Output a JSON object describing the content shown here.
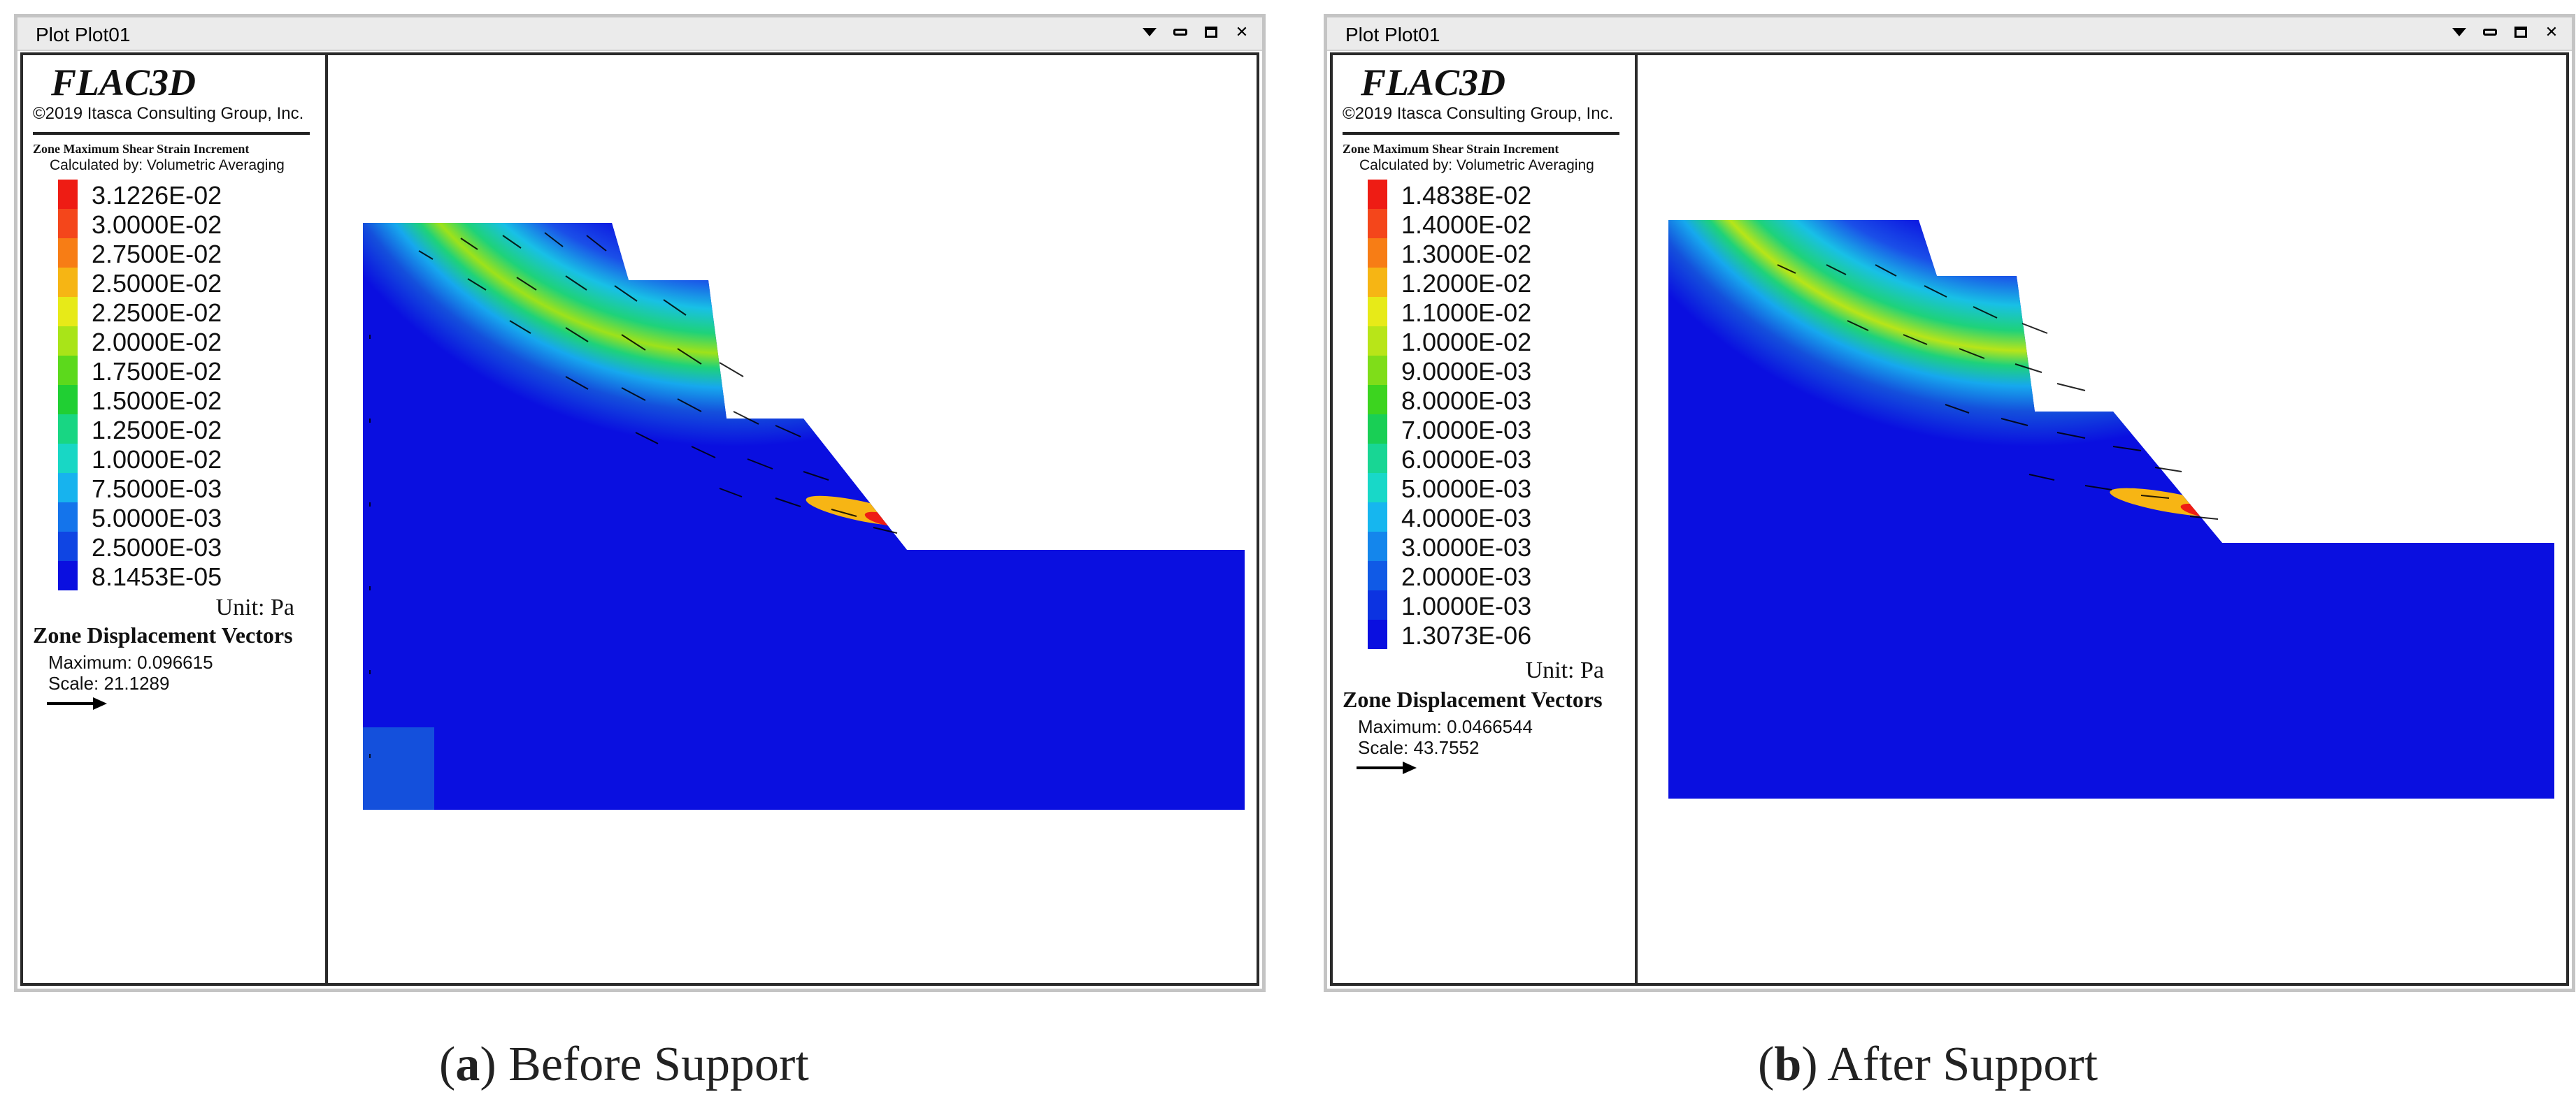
{
  "panels": [
    {
      "id": "a",
      "window_title": "Plot Plot01",
      "brand": "FLAC3D",
      "copyright": "©2019 Itasca Consulting Group, Inc.",
      "contour_title": "Zone Maximum Shear Strain Increment",
      "calculated_by": "Calculated by: Volumetric Averaging",
      "scale_labels": [
        "3.1226E-02",
        "3.0000E-02",
        "2.7500E-02",
        "2.5000E-02",
        "2.2500E-02",
        "2.0000E-02",
        "1.7500E-02",
        "1.5000E-02",
        "1.2500E-02",
        "1.0000E-02",
        "7.5000E-03",
        "5.0000E-03",
        "2.5000E-03",
        "8.1453E-05"
      ],
      "unit": "Unit: Pa",
      "vectors_title": "Zone Displacement Vectors",
      "vectors_maximum": "Maximum: 0.096615",
      "vectors_scale": "Scale: 21.1289",
      "caption_letter": "a",
      "caption_text": "Before Support"
    },
    {
      "id": "b",
      "window_title": "Plot Plot01",
      "brand": "FLAC3D",
      "copyright": "©2019 Itasca Consulting Group, Inc.",
      "contour_title": "Zone Maximum Shear Strain Increment",
      "calculated_by": "Calculated by: Volumetric Averaging",
      "scale_labels": [
        "1.4838E-02",
        "1.4000E-02",
        "1.3000E-02",
        "1.2000E-02",
        "1.1000E-02",
        "1.0000E-02",
        "9.0000E-03",
        "8.0000E-03",
        "7.0000E-03",
        "6.0000E-03",
        "5.0000E-03",
        "4.0000E-03",
        "3.0000E-03",
        "2.0000E-03",
        "1.0000E-03",
        "1.3073E-06"
      ],
      "unit": "Unit: Pa",
      "vectors_title": "Zone Displacement Vectors",
      "vectors_maximum": "Maximum: 0.0466544",
      "vectors_scale": "Scale: 43.7552",
      "caption_letter": "b",
      "caption_text": "After Support"
    }
  ],
  "colors": {
    "scale_a": [
      "#ee1c14",
      "#f4461b",
      "#f77d15",
      "#f6b514",
      "#e7ea18",
      "#a9e418",
      "#5cd91c",
      "#20cf33",
      "#18d683",
      "#18d7c5",
      "#17b3ee",
      "#1474eb",
      "#0f45e3",
      "#0a0fe0"
    ],
    "scale_b": [
      "#ee1c14",
      "#f4461b",
      "#f77d15",
      "#f6b514",
      "#e7ea18",
      "#b8e518",
      "#7fdd19",
      "#3cd41f",
      "#19cf55",
      "#18d694",
      "#18d8c8",
      "#16b6ef",
      "#1486ec",
      "#105ae6",
      "#0c33e1",
      "#0a0fe0"
    ],
    "slope_blue": "#0a0fe0",
    "toe_patch": "#1450dc"
  }
}
